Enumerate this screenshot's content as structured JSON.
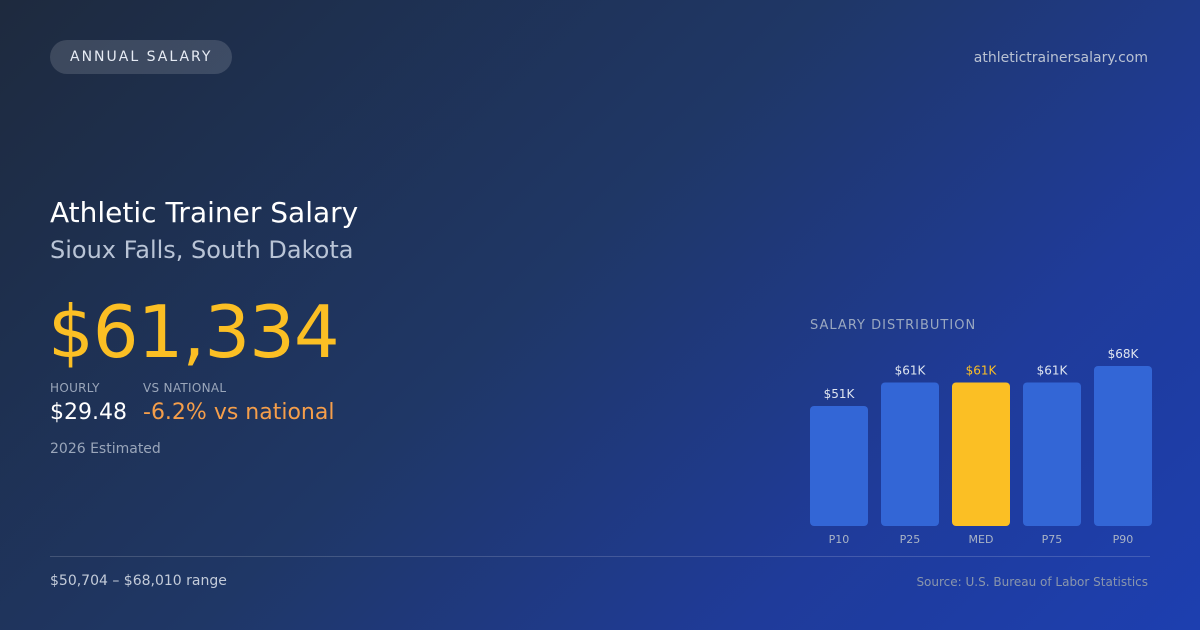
{
  "header": {
    "badge_label": "ANNUAL SALARY",
    "site_url": "athletictrainersalary.com"
  },
  "hero": {
    "title": "Athletic Trainer Salary",
    "location": "Sioux Falls, South Dakota",
    "annual_salary": "$61,334"
  },
  "stats": {
    "hourly_label": "HOURLY",
    "hourly_value": "$29.48",
    "vs_national_label": "VS NATIONAL",
    "vs_national_value": "-6.2% vs national",
    "estimate_note": "2026 Estimated"
  },
  "chart_data": {
    "type": "bar",
    "title": "SALARY DISTRIBUTION",
    "categories": [
      "P10",
      "P25",
      "MED",
      "P75",
      "P90"
    ],
    "values": [
      51,
      61,
      61,
      61,
      68
    ],
    "value_labels": [
      "$51K",
      "$61K",
      "$61K",
      "$61K",
      "$68K"
    ],
    "highlight_category": "MED",
    "colors": {
      "bar": "#3366d6",
      "highlight_bar": "#fbbf24",
      "label": "#dfe5ef",
      "highlight_label": "#fbbf24",
      "category_label": "#aab4c6"
    }
  },
  "footer": {
    "range_text": "$50,704 – $68,010 range",
    "source_text": "Source: U.S. Bureau of Labor Statistics"
  },
  "colors": {
    "accent": "#fbbf24",
    "negative": "#f59e4a"
  }
}
